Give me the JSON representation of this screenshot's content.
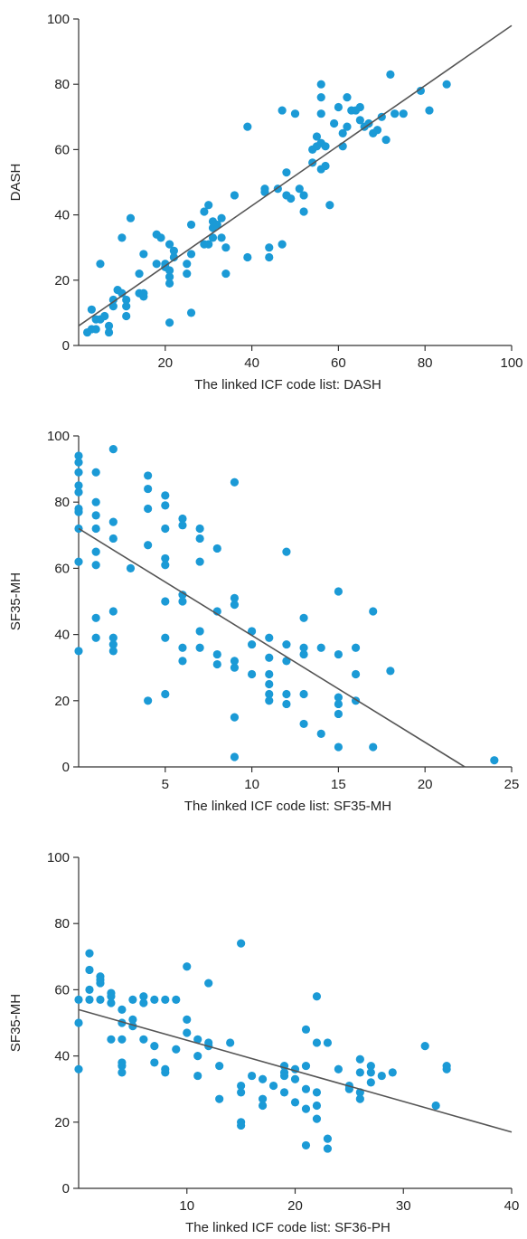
{
  "chart_data": [
    {
      "type": "scatter",
      "xlabel": "The linked ICF code list: DASH",
      "ylabel": "DASH",
      "xlim": [
        0,
        100
      ],
      "ylim": [
        0,
        100
      ],
      "xticks": [
        20,
        40,
        60,
        80,
        100
      ],
      "yticks": [
        0,
        20,
        40,
        60,
        80,
        100
      ],
      "point_color": "#1b9ad6",
      "line_color": "#555555",
      "fit_line": {
        "x": [
          0,
          100
        ],
        "y": [
          6,
          98
        ]
      },
      "points": [
        [
          2,
          4
        ],
        [
          3,
          5
        ],
        [
          3,
          11
        ],
        [
          4,
          5
        ],
        [
          4,
          8
        ],
        [
          5,
          25
        ],
        [
          5,
          8
        ],
        [
          6,
          9
        ],
        [
          7,
          6
        ],
        [
          7,
          4
        ],
        [
          8,
          14
        ],
        [
          8,
          12
        ],
        [
          9,
          17
        ],
        [
          10,
          16
        ],
        [
          10,
          33
        ],
        [
          11,
          9
        ],
        [
          11,
          12
        ],
        [
          11,
          14
        ],
        [
          12,
          39
        ],
        [
          14,
          16
        ],
        [
          14,
          22
        ],
        [
          15,
          15
        ],
        [
          15,
          16
        ],
        [
          15,
          28
        ],
        [
          18,
          25
        ],
        [
          18,
          34
        ],
        [
          19,
          33
        ],
        [
          20,
          24
        ],
        [
          20,
          25
        ],
        [
          21,
          7
        ],
        [
          21,
          19
        ],
        [
          21,
          21
        ],
        [
          21,
          23
        ],
        [
          21,
          31
        ],
        [
          22,
          27
        ],
        [
          22,
          29
        ],
        [
          25,
          22
        ],
        [
          25,
          25
        ],
        [
          26,
          10
        ],
        [
          26,
          28
        ],
        [
          26,
          37
        ],
        [
          29,
          41
        ],
        [
          29,
          31
        ],
        [
          30,
          43
        ],
        [
          30,
          31
        ],
        [
          31,
          33
        ],
        [
          31,
          36
        ],
        [
          31,
          38
        ],
        [
          32,
          37
        ],
        [
          33,
          39
        ],
        [
          33,
          33
        ],
        [
          34,
          22
        ],
        [
          34,
          30
        ],
        [
          36,
          46
        ],
        [
          39,
          67
        ],
        [
          39,
          27
        ],
        [
          43,
          47
        ],
        [
          43,
          48
        ],
        [
          44,
          30
        ],
        [
          44,
          27
        ],
        [
          46,
          48
        ],
        [
          47,
          72
        ],
        [
          47,
          31
        ],
        [
          48,
          46
        ],
        [
          48,
          53
        ],
        [
          49,
          45
        ],
        [
          50,
          71
        ],
        [
          51,
          48
        ],
        [
          52,
          46
        ],
        [
          52,
          41
        ],
        [
          54,
          56
        ],
        [
          54,
          60
        ],
        [
          55,
          64
        ],
        [
          55,
          61
        ],
        [
          56,
          71
        ],
        [
          56,
          80
        ],
        [
          56,
          76
        ],
        [
          56,
          62
        ],
        [
          56,
          54
        ],
        [
          57,
          61
        ],
        [
          57,
          55
        ],
        [
          58,
          43
        ],
        [
          59,
          68
        ],
        [
          60,
          73
        ],
        [
          61,
          61
        ],
        [
          61,
          65
        ],
        [
          62,
          67
        ],
        [
          62,
          76
        ],
        [
          63,
          72
        ],
        [
          64,
          72
        ],
        [
          65,
          69
        ],
        [
          65,
          73
        ],
        [
          66,
          67
        ],
        [
          67,
          68
        ],
        [
          68,
          65
        ],
        [
          69,
          66
        ],
        [
          70,
          70
        ],
        [
          71,
          63
        ],
        [
          72,
          83
        ],
        [
          73,
          71
        ],
        [
          75,
          71
        ],
        [
          79,
          78
        ],
        [
          81,
          72
        ],
        [
          85,
          80
        ]
      ]
    },
    {
      "type": "scatter",
      "xlabel": "The linked ICF code list: SF35-MH",
      "ylabel": "SF35-MH",
      "xlim": [
        0,
        25
      ],
      "ylim": [
        0,
        100
      ],
      "xticks": [
        5,
        10,
        15,
        20,
        25
      ],
      "yticks": [
        0,
        20,
        40,
        60,
        80,
        100
      ],
      "point_color": "#1b9ad6",
      "line_color": "#555555",
      "fit_line": {
        "x": [
          0,
          22.3
        ],
        "y": [
          72,
          0
        ]
      },
      "points": [
        [
          0,
          94
        ],
        [
          0,
          92
        ],
        [
          0,
          89
        ],
        [
          0,
          85
        ],
        [
          0,
          83
        ],
        [
          0,
          78
        ],
        [
          0,
          77
        ],
        [
          0,
          72
        ],
        [
          0,
          62
        ],
        [
          0,
          35
        ],
        [
          1,
          89
        ],
        [
          1,
          80
        ],
        [
          1,
          76
        ],
        [
          1,
          72
        ],
        [
          1,
          65
        ],
        [
          1,
          61
        ],
        [
          1,
          45
        ],
        [
          1,
          39
        ],
        [
          2,
          96
        ],
        [
          2,
          74
        ],
        [
          2,
          69
        ],
        [
          2,
          47
        ],
        [
          2,
          39
        ],
        [
          2,
          37
        ],
        [
          2,
          35
        ],
        [
          3,
          60
        ],
        [
          4,
          88
        ],
        [
          4,
          84
        ],
        [
          4,
          78
        ],
        [
          4,
          67
        ],
        [
          4,
          20
        ],
        [
          5,
          82
        ],
        [
          5,
          79
        ],
        [
          5,
          72
        ],
        [
          5,
          63
        ],
        [
          5,
          61
        ],
        [
          5,
          50
        ],
        [
          5,
          39
        ],
        [
          5,
          22
        ],
        [
          6,
          75
        ],
        [
          6,
          73
        ],
        [
          6,
          52
        ],
        [
          6,
          50
        ],
        [
          6,
          36
        ],
        [
          6,
          32
        ],
        [
          7,
          72
        ],
        [
          7,
          69
        ],
        [
          7,
          62
        ],
        [
          7,
          41
        ],
        [
          7,
          36
        ],
        [
          8,
          66
        ],
        [
          8,
          47
        ],
        [
          8,
          34
        ],
        [
          8,
          31
        ],
        [
          9,
          86
        ],
        [
          9,
          51
        ],
        [
          9,
          49
        ],
        [
          9,
          32
        ],
        [
          9,
          30
        ],
        [
          9,
          15
        ],
        [
          9,
          3
        ],
        [
          10,
          41
        ],
        [
          10,
          37
        ],
        [
          10,
          28
        ],
        [
          11,
          39
        ],
        [
          11,
          33
        ],
        [
          11,
          28
        ],
        [
          11,
          25
        ],
        [
          11,
          22
        ],
        [
          11,
          20
        ],
        [
          12,
          65
        ],
        [
          12,
          37
        ],
        [
          12,
          32
        ],
        [
          12,
          22
        ],
        [
          12,
          19
        ],
        [
          13,
          45
        ],
        [
          13,
          36
        ],
        [
          13,
          34
        ],
        [
          13,
          22
        ],
        [
          13,
          13
        ],
        [
          14,
          36
        ],
        [
          14,
          10
        ],
        [
          15,
          53
        ],
        [
          15,
          34
        ],
        [
          15,
          21
        ],
        [
          15,
          19
        ],
        [
          15,
          16
        ],
        [
          15,
          6
        ],
        [
          16,
          36
        ],
        [
          16,
          28
        ],
        [
          16,
          20
        ],
        [
          17,
          47
        ],
        [
          17,
          6
        ],
        [
          18,
          29
        ],
        [
          24,
          2
        ]
      ]
    },
    {
      "type": "scatter",
      "xlabel": "The linked ICF code list: SF36-PH",
      "ylabel": "SF35-MH",
      "xlim": [
        0,
        40
      ],
      "ylim": [
        0,
        100
      ],
      "xticks": [
        10,
        20,
        30,
        40
      ],
      "yticks": [
        0,
        20,
        40,
        60,
        80,
        100
      ],
      "point_color": "#1b9ad6",
      "line_color": "#555555",
      "fit_line": {
        "x": [
          0,
          40
        ],
        "y": [
          54,
          17
        ]
      },
      "points": [
        [
          0,
          57
        ],
        [
          0,
          50
        ],
        [
          0,
          36
        ],
        [
          1,
          71
        ],
        [
          1,
          66
        ],
        [
          1,
          60
        ],
        [
          1,
          57
        ],
        [
          2,
          62
        ],
        [
          2,
          57
        ],
        [
          2,
          63
        ],
        [
          2,
          64
        ],
        [
          3,
          59
        ],
        [
          3,
          58
        ],
        [
          3,
          56
        ],
        [
          3,
          45
        ],
        [
          4,
          54
        ],
        [
          4,
          50
        ],
        [
          4,
          38
        ],
        [
          4,
          37
        ],
        [
          4,
          35
        ],
        [
          4,
          45
        ],
        [
          5,
          51
        ],
        [
          5,
          57
        ],
        [
          5,
          49
        ],
        [
          6,
          58
        ],
        [
          6,
          56
        ],
        [
          6,
          45
        ],
        [
          7,
          57
        ],
        [
          7,
          43
        ],
        [
          7,
          38
        ],
        [
          8,
          35
        ],
        [
          8,
          36
        ],
        [
          8,
          57
        ],
        [
          9,
          57
        ],
        [
          9,
          42
        ],
        [
          10,
          67
        ],
        [
          10,
          51
        ],
        [
          10,
          47
        ],
        [
          11,
          45
        ],
        [
          11,
          40
        ],
        [
          11,
          34
        ],
        [
          12,
          62
        ],
        [
          12,
          44
        ],
        [
          12,
          43
        ],
        [
          13,
          27
        ],
        [
          13,
          37
        ],
        [
          14,
          44
        ],
        [
          15,
          74
        ],
        [
          15,
          31
        ],
        [
          15,
          29
        ],
        [
          15,
          20
        ],
        [
          15,
          19
        ],
        [
          16,
          34
        ],
        [
          17,
          33
        ],
        [
          17,
          27
        ],
        [
          17,
          25
        ],
        [
          18,
          31
        ],
        [
          19,
          37
        ],
        [
          19,
          35
        ],
        [
          19,
          34
        ],
        [
          19,
          29
        ],
        [
          20,
          36
        ],
        [
          20,
          33
        ],
        [
          20,
          26
        ],
        [
          21,
          30
        ],
        [
          21,
          24
        ],
        [
          21,
          37
        ],
        [
          21,
          48
        ],
        [
          21,
          13
        ],
        [
          22,
          58
        ],
        [
          22,
          44
        ],
        [
          22,
          29
        ],
        [
          22,
          25
        ],
        [
          22,
          21
        ],
        [
          23,
          44
        ],
        [
          23,
          15
        ],
        [
          23,
          12
        ],
        [
          24,
          36
        ],
        [
          25,
          31
        ],
        [
          25,
          30
        ],
        [
          26,
          29
        ],
        [
          26,
          27
        ],
        [
          26,
          39
        ],
        [
          26,
          35
        ],
        [
          27,
          37
        ],
        [
          27,
          32
        ],
        [
          27,
          35
        ],
        [
          28,
          34
        ],
        [
          29,
          35
        ],
        [
          32,
          43
        ],
        [
          33,
          25
        ],
        [
          34,
          36
        ],
        [
          34,
          37
        ]
      ]
    }
  ]
}
